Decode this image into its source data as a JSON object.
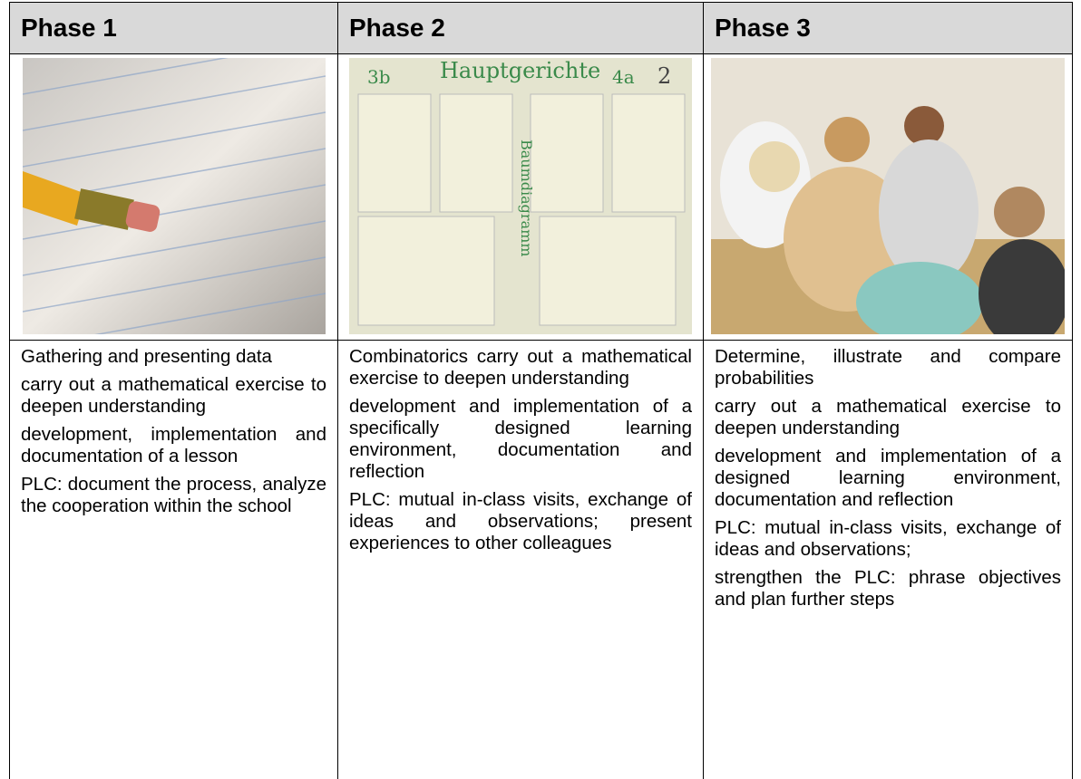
{
  "table": {
    "header": [
      "Phase 1",
      "Phase 2",
      "Phase 3"
    ],
    "poster": {
      "title": "Hauptgerichte",
      "left": "3b",
      "right": "4a",
      "corner": "2",
      "side": "Baumdiagramm"
    },
    "cells": [
      [
        "Gathering and presenting data",
        "carry out a mathematical exercise to deepen understanding",
        "development, implementation and documentation of a lesson",
        "PLC: document the process, analyze the cooperation within the school"
      ],
      [
        "Combinatorics carry out a mathematical exercise to deepen understanding",
        "development and implementation of a specifically designed learning environment, documentation and reflection",
        "PLC: mutual in-class visits, exchange of ideas and observations; present experiences to other colleagues"
      ],
      [
        "Determine, illustrate and compare probabilities",
        "carry out a mathematical exercise to deepen understanding",
        "development and implementation of a designed learning environment, documentation and reflection",
        "PLC: mutual in-class visits, exchange of ideas and observations;",
        "strengthen the PLC: phrase objectives and plan further steps"
      ]
    ]
  }
}
